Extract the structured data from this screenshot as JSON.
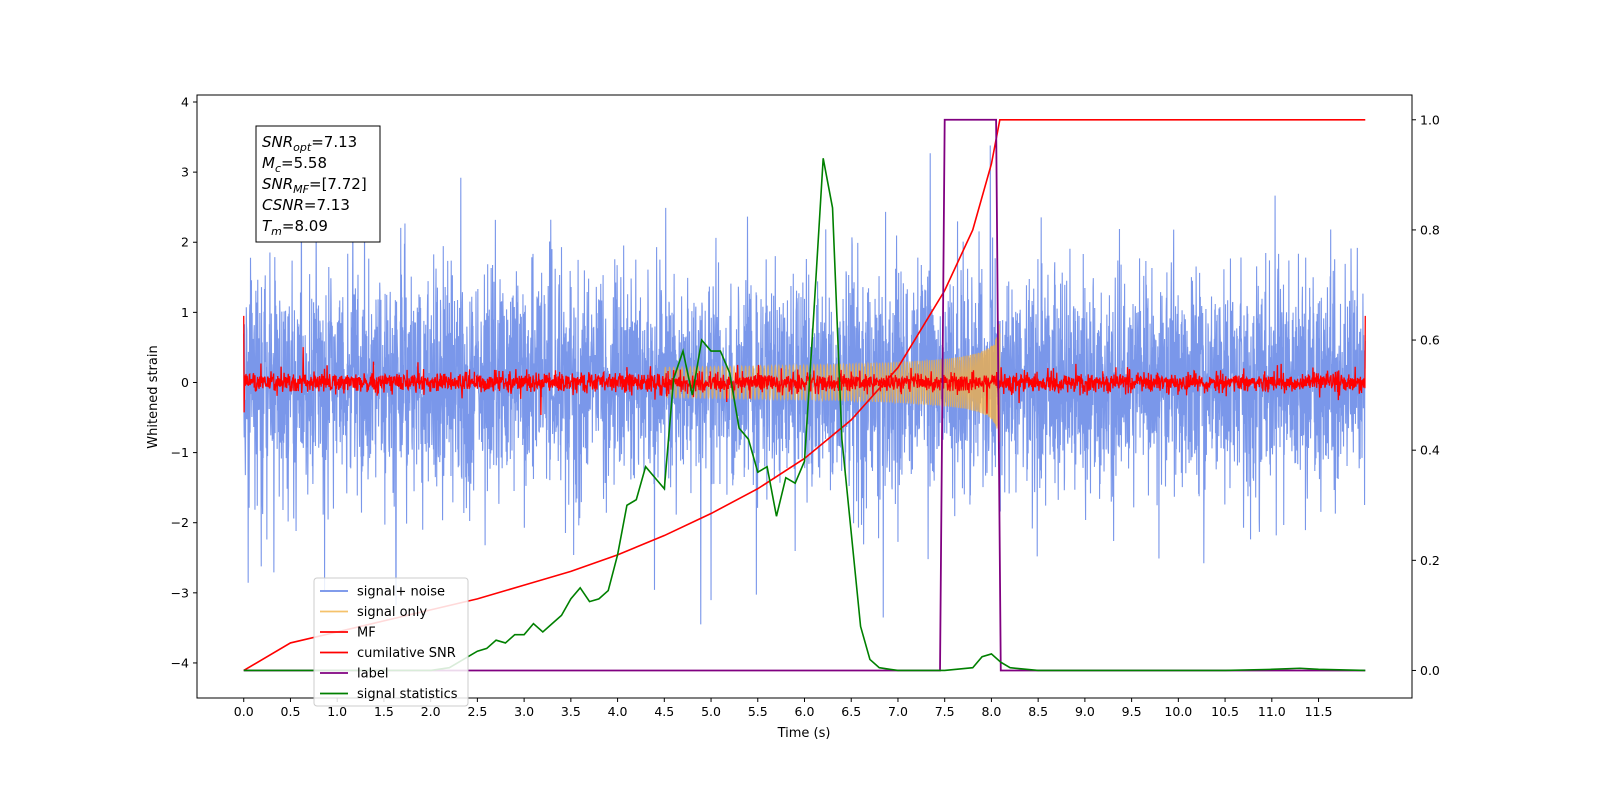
{
  "chart_data": {
    "type": "line",
    "xlabel": "Time (s)",
    "ylabel_left": "Whitened strain",
    "ylabel_right": "",
    "xlim": [
      -0.5,
      12.5
    ],
    "ylim_left": [
      -4.5,
      4.1
    ],
    "ylim_right": [
      -0.05,
      1.045
    ],
    "x_ticks": [
      "0.0",
      "0.5",
      "1.0",
      "1.5",
      "2.0",
      "2.5",
      "3.0",
      "3.5",
      "4.0",
      "4.5",
      "5.0",
      "5.5",
      "6.0",
      "6.5",
      "7.0",
      "7.5",
      "8.0",
      "8.5",
      "9.0",
      "9.5",
      "10.0",
      "10.5",
      "11.0",
      "11.5"
    ],
    "y_ticks_left": [
      "4",
      "3",
      "2",
      "1",
      "0",
      "−1",
      "−2",
      "−3",
      "−4"
    ],
    "y_ticks_right": [
      "1.0",
      "0.8",
      "0.6",
      "0.4",
      "0.2",
      "0.0"
    ],
    "grid": false,
    "legend_position": "lower-left",
    "annotation": {
      "lines": [
        {
          "base": "SNR",
          "sub": "opt",
          "value": "=7.13"
        },
        {
          "base": "M",
          "sub": "c",
          "value": "=5.58"
        },
        {
          "base": "SNR",
          "sub": "MF",
          "value": "=[7.72]"
        },
        {
          "base": "CSNR",
          "sub": "",
          "value": "=7.13"
        },
        {
          "base": "T",
          "sub": "m",
          "value": "=8.09"
        }
      ]
    },
    "series": [
      {
        "name": "signal+ noise",
        "axis": "left",
        "color": "#6f8ee8",
        "style": "dense noise, amplitude approx ±1.4 with peaks to ±3.5, 0.0–12.0 s"
      },
      {
        "name": "signal only",
        "axis": "left",
        "color": "#f5b041",
        "style": "chirp growing to ±0.45 from 4.5 s up to merger at 8.09 s"
      },
      {
        "name": "MF",
        "axis": "left",
        "color": "#ff0000",
        "style": "matched-filter output, ±0.2 noise around 0"
      },
      {
        "name": "cumilative SNR",
        "axis": "right",
        "color": "#ff0000",
        "points": [
          [
            0.0,
            0.0
          ],
          [
            0.5,
            0.05
          ],
          [
            1.0,
            0.07
          ],
          [
            1.5,
            0.09
          ],
          [
            2.0,
            0.11
          ],
          [
            2.5,
            0.13
          ],
          [
            3.0,
            0.155
          ],
          [
            3.5,
            0.18
          ],
          [
            4.0,
            0.21
          ],
          [
            4.5,
            0.245
          ],
          [
            5.0,
            0.285
          ],
          [
            5.5,
            0.33
          ],
          [
            6.0,
            0.385
          ],
          [
            6.5,
            0.455
          ],
          [
            7.0,
            0.55
          ],
          [
            7.5,
            0.69
          ],
          [
            7.8,
            0.8
          ],
          [
            8.0,
            0.92
          ],
          [
            8.09,
            1.0
          ],
          [
            12.0,
            1.0
          ]
        ]
      },
      {
        "name": "label",
        "axis": "right",
        "color": "#800080",
        "points": [
          [
            0.0,
            0.0
          ],
          [
            7.45,
            0.0
          ],
          [
            7.5,
            1.0
          ],
          [
            8.05,
            1.0
          ],
          [
            8.1,
            0.0
          ],
          [
            12.0,
            0.0
          ]
        ]
      },
      {
        "name": "signal statistics",
        "axis": "right",
        "color": "#008000",
        "points": [
          [
            0.0,
            0.0
          ],
          [
            0.5,
            0.0
          ],
          [
            1.0,
            0.0
          ],
          [
            1.5,
            0.0
          ],
          [
            2.0,
            0.0
          ],
          [
            2.2,
            0.005
          ],
          [
            2.35,
            0.02
          ],
          [
            2.5,
            0.035
          ],
          [
            2.6,
            0.04
          ],
          [
            2.7,
            0.055
          ],
          [
            2.8,
            0.05
          ],
          [
            2.9,
            0.065
          ],
          [
            3.0,
            0.065
          ],
          [
            3.1,
            0.085
          ],
          [
            3.2,
            0.07
          ],
          [
            3.3,
            0.085
          ],
          [
            3.4,
            0.1
          ],
          [
            3.5,
            0.13
          ],
          [
            3.6,
            0.15
          ],
          [
            3.7,
            0.125
          ],
          [
            3.8,
            0.13
          ],
          [
            3.9,
            0.145
          ],
          [
            4.0,
            0.21
          ],
          [
            4.1,
            0.3
          ],
          [
            4.2,
            0.31
          ],
          [
            4.3,
            0.37
          ],
          [
            4.4,
            0.35
          ],
          [
            4.5,
            0.33
          ],
          [
            4.6,
            0.53
          ],
          [
            4.7,
            0.58
          ],
          [
            4.8,
            0.5
          ],
          [
            4.9,
            0.6
          ],
          [
            5.0,
            0.58
          ],
          [
            5.1,
            0.58
          ],
          [
            5.2,
            0.54
          ],
          [
            5.3,
            0.44
          ],
          [
            5.4,
            0.42
          ],
          [
            5.5,
            0.36
          ],
          [
            5.6,
            0.37
          ],
          [
            5.7,
            0.28
          ],
          [
            5.8,
            0.35
          ],
          [
            5.9,
            0.34
          ],
          [
            6.0,
            0.38
          ],
          [
            6.1,
            0.65
          ],
          [
            6.2,
            0.93
          ],
          [
            6.3,
            0.84
          ],
          [
            6.4,
            0.42
          ],
          [
            6.5,
            0.25
          ],
          [
            6.6,
            0.08
          ],
          [
            6.7,
            0.02
          ],
          [
            6.8,
            0.005
          ],
          [
            7.0,
            0.0
          ],
          [
            7.5,
            0.0
          ],
          [
            7.8,
            0.005
          ],
          [
            7.9,
            0.025
          ],
          [
            8.0,
            0.03
          ],
          [
            8.1,
            0.015
          ],
          [
            8.2,
            0.005
          ],
          [
            8.5,
            0.0
          ],
          [
            10.5,
            0.0
          ],
          [
            11.0,
            0.002
          ],
          [
            11.3,
            0.004
          ],
          [
            11.5,
            0.002
          ],
          [
            12.0,
            0.0
          ]
        ]
      }
    ]
  }
}
